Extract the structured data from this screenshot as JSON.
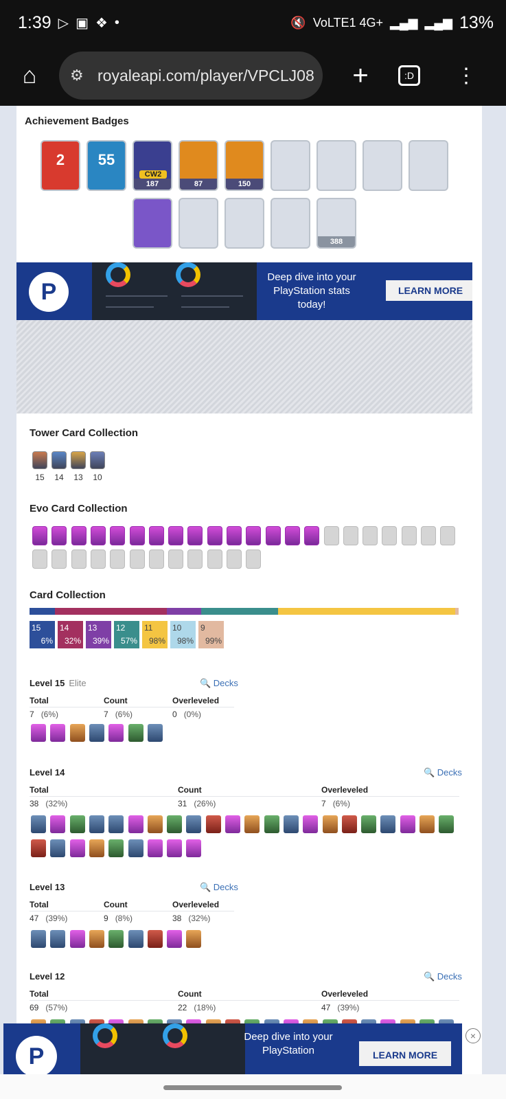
{
  "status_bar": {
    "time": "1:39",
    "network": "VoLTE1 4G+",
    "battery": "13%"
  },
  "browser": {
    "url": "royaleapi.com/player/VPCLJ08",
    "tabs_label": ":D"
  },
  "achievement_badges": {
    "title": "Achievement Badges",
    "badges": [
      {
        "name": "years-played",
        "big": "2"
      },
      {
        "name": "level",
        "big": "55"
      },
      {
        "name": "clan-wars-2",
        "tag": "CW2",
        "value": "187"
      },
      {
        "name": "crown-chest",
        "value": "87"
      },
      {
        "name": "crown-banner",
        "value": "150"
      },
      {
        "name": "classic-challenge"
      },
      {
        "name": "grand-challenge"
      },
      {
        "name": "card-ruby"
      },
      {
        "name": "emote-badge"
      },
      {
        "name": "tournament"
      },
      {
        "name": "crystal"
      },
      {
        "name": "gold-coin"
      },
      {
        "name": "globe"
      },
      {
        "name": "cards",
        "value": "388"
      }
    ]
  },
  "ad": {
    "headline": "Deep dive into your PlayStation stats today!",
    "cta": "LEARN MORE",
    "bottom_headline": "Deep dive into your PlayStation",
    "bottom_cta": "LEARN MORE"
  },
  "tower_cards": {
    "title": "Tower Card Collection",
    "levels": [
      "15",
      "14",
      "13",
      "10"
    ]
  },
  "evo_cards": {
    "title": "Evo Card Collection",
    "owned": 15,
    "total": 34
  },
  "card_collection": {
    "title": "Card Collection",
    "chips": [
      {
        "level": "15",
        "pct": "6%",
        "color": "#2d4f9a"
      },
      {
        "level": "14",
        "pct": "32%",
        "color": "#a3305f"
      },
      {
        "level": "13",
        "pct": "39%",
        "color": "#7f3fa6"
      },
      {
        "level": "12",
        "pct": "57%",
        "color": "#3a8e8c"
      },
      {
        "level": "11",
        "pct": "98%",
        "color": "#f4c542"
      },
      {
        "level": "10",
        "pct": "98%",
        "color": "#aed8ea"
      },
      {
        "level": "9",
        "pct": "99%",
        "color": "#e2b9a0"
      }
    ]
  },
  "levels": [
    {
      "label": "Level 15",
      "note": "Elite",
      "decks": "Decks",
      "total": "7",
      "total_pct": "(6%)",
      "count": "7",
      "count_pct": "(6%)",
      "over": "0",
      "over_pct": "(0%)"
    },
    {
      "label": "Level 14",
      "note": "",
      "decks": "Decks",
      "total": "38",
      "total_pct": "(32%)",
      "count": "31",
      "count_pct": "(26%)",
      "over": "7",
      "over_pct": "(6%)"
    },
    {
      "label": "Level 13",
      "note": "",
      "decks": "Decks",
      "total": "47",
      "total_pct": "(39%)",
      "count": "9",
      "count_pct": "(8%)",
      "over": "38",
      "over_pct": "(32%)"
    },
    {
      "label": "Level 12",
      "note": "",
      "decks": "Decks",
      "total": "69",
      "total_pct": "(57%)",
      "count": "22",
      "count_pct": "(18%)",
      "over": "47",
      "over_pct": "(39%)"
    }
  ],
  "headers": {
    "total": "Total",
    "count": "Count",
    "over": "Overleveled"
  }
}
